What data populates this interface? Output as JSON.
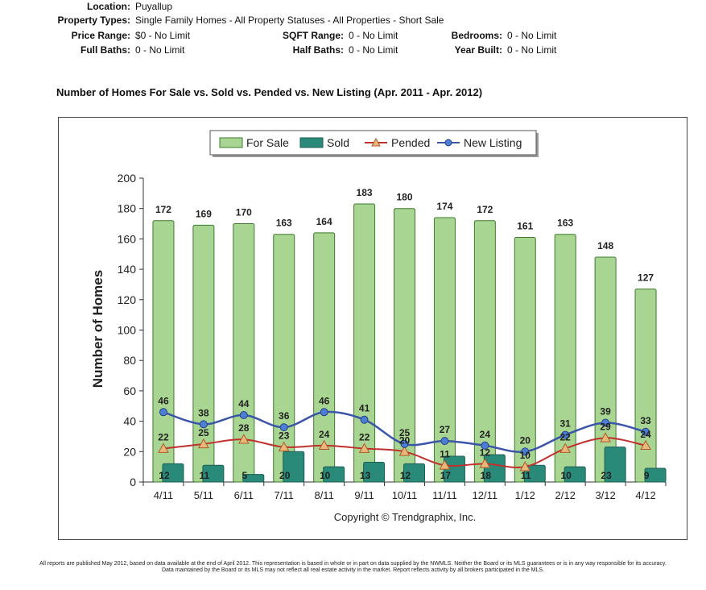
{
  "criteria": {
    "location": {
      "label": "Location:",
      "value": "Puyallup"
    },
    "property_types": {
      "label": "Property Types:",
      "value": "Single Family Homes - All Property Statuses - All Properties - Short Sale"
    },
    "price_range": {
      "label": "Price Range:",
      "value": "$0 - No Limit"
    },
    "sqft_range": {
      "label": "SQFT Range:",
      "value": "0 - No Limit"
    },
    "bedrooms": {
      "label": "Bedrooms:",
      "value": "0 - No Limit"
    },
    "full_baths": {
      "label": "Full Baths:",
      "value": "0 - No Limit"
    },
    "half_baths": {
      "label": "Half Baths:",
      "value": "0 - No Limit"
    },
    "year_built": {
      "label": "Year Built:",
      "value": "0 - No Limit"
    }
  },
  "chart_data": {
    "type": "bar",
    "title": "Number of Homes For Sale vs. Sold vs. Pended vs. New Listing (Apr. 2011 - Apr. 2012)",
    "xlabel": "",
    "ylabel": "Number of Homes",
    "ylim": [
      0,
      200
    ],
    "yticks": [
      "0",
      "20",
      "40",
      "60",
      "80",
      "100",
      "120",
      "140",
      "160",
      "180",
      "200"
    ],
    "ytick_values": [
      0,
      20,
      40,
      60,
      80,
      100,
      120,
      140,
      160,
      180,
      200
    ],
    "categories": [
      "4/11",
      "5/11",
      "6/11",
      "7/11",
      "8/11",
      "9/11",
      "10/11",
      "11/11",
      "12/11",
      "1/12",
      "2/12",
      "3/12",
      "4/12"
    ],
    "legend_position": "top-center",
    "grid": false,
    "copyright": "Copyright © Trendgraphix, Inc.",
    "series": [
      {
        "name": "For Sale",
        "kind": "bar",
        "color": "#a8d591",
        "values": [
          172,
          169,
          170,
          163,
          164,
          183,
          180,
          174,
          172,
          161,
          163,
          148,
          127
        ]
      },
      {
        "name": "Sold",
        "kind": "bar",
        "color": "#2a8a7a",
        "values": [
          12,
          11,
          5,
          20,
          10,
          13,
          12,
          17,
          18,
          11,
          10,
          23,
          9
        ]
      },
      {
        "name": "Pended",
        "kind": "line",
        "color": "#c0302c",
        "values": [
          22,
          25,
          28,
          23,
          24,
          22,
          20,
          11,
          12,
          10,
          22,
          29,
          24
        ]
      },
      {
        "name": "New Listing",
        "kind": "line",
        "color": "#3b55a8",
        "values": [
          46,
          38,
          44,
          36,
          46,
          41,
          25,
          27,
          24,
          20,
          31,
          39,
          33
        ]
      }
    ]
  },
  "footer": {
    "line1": "All reports are published May 2012, based on data available at the end of April 2012. This representation is based in whole or in part on data supplied by the NWMLS. Neither the Board or its MLS guarantees or is in any way responsible for its accuracy.",
    "line2": "Data maintained by the Board or its MLS may not reflect all real estate activity in the market. Report reflects activity by all brokers participated in the MLS."
  }
}
